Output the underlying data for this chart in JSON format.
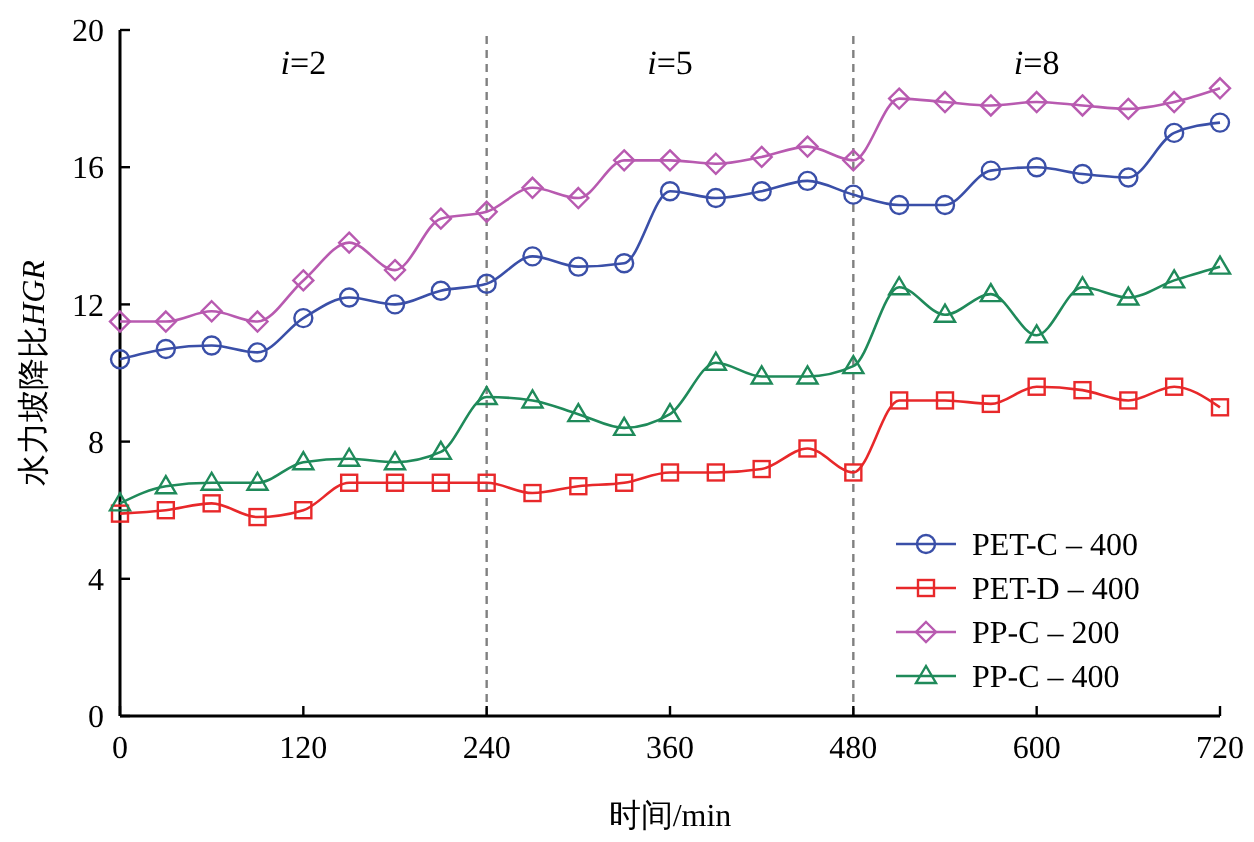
{
  "chart_data": {
    "type": "line",
    "xlabel": "时间/min",
    "ylabel": "水力坡降比HGR",
    "x": [
      0,
      30,
      60,
      90,
      120,
      150,
      180,
      210,
      240,
      270,
      300,
      330,
      360,
      390,
      420,
      450,
      480,
      510,
      540,
      570,
      600,
      630,
      660,
      690,
      720
    ],
    "xlim": [
      0,
      720
    ],
    "xticks": [
      0,
      120,
      240,
      360,
      480,
      600,
      720
    ],
    "ylim": [
      0,
      20
    ],
    "yticks": [
      0,
      4,
      8,
      12,
      16,
      20
    ],
    "grid": false,
    "legend": "bottom right",
    "line_style": "solid",
    "ref_lines": [
      {
        "axis": "x",
        "value": 240,
        "color": "#808080",
        "line_style": "dashed"
      },
      {
        "axis": "x",
        "value": 480,
        "color": "#808080",
        "line_style": "dashed"
      }
    ],
    "annotations": [
      "i=2",
      "i=5",
      "i=8"
    ],
    "series": [
      {
        "name": "PET-C – 400",
        "color": "#3a4fa8",
        "marker": "circle",
        "values": [
          10.4,
          10.7,
          10.8,
          10.6,
          11.6,
          12.2,
          12.0,
          12.4,
          12.6,
          13.4,
          13.1,
          13.2,
          15.3,
          15.1,
          15.3,
          15.6,
          15.2,
          14.9,
          14.9,
          15.9,
          16.0,
          15.8,
          15.7,
          17.0,
          17.3
        ]
      },
      {
        "name": "PET-D – 400",
        "color": "#e8282a",
        "marker": "square",
        "values": [
          5.9,
          6.0,
          6.2,
          5.8,
          6.0,
          6.8,
          6.8,
          6.8,
          6.8,
          6.5,
          6.7,
          6.8,
          7.1,
          7.1,
          7.2,
          7.8,
          7.1,
          9.2,
          9.2,
          9.1,
          9.6,
          9.5,
          9.2,
          9.6,
          9.0
        ]
      },
      {
        "name": "PP-C – 200",
        "color": "#b85ab0",
        "marker": "diamond",
        "values": [
          11.5,
          11.5,
          11.8,
          11.5,
          12.7,
          13.8,
          13.0,
          14.5,
          14.7,
          15.4,
          15.1,
          16.2,
          16.2,
          16.1,
          16.3,
          16.6,
          16.2,
          18.0,
          17.9,
          17.8,
          17.9,
          17.8,
          17.7,
          17.9,
          18.3
        ]
      },
      {
        "name": "PP-C – 400",
        "color": "#1f8a5a",
        "marker": "triangle",
        "values": [
          6.2,
          6.7,
          6.8,
          6.8,
          7.4,
          7.5,
          7.4,
          7.7,
          9.3,
          9.2,
          8.8,
          8.4,
          8.8,
          10.3,
          9.9,
          9.9,
          10.2,
          12.5,
          11.7,
          12.3,
          11.1,
          12.5,
          12.2,
          12.7,
          13.1
        ]
      }
    ]
  }
}
